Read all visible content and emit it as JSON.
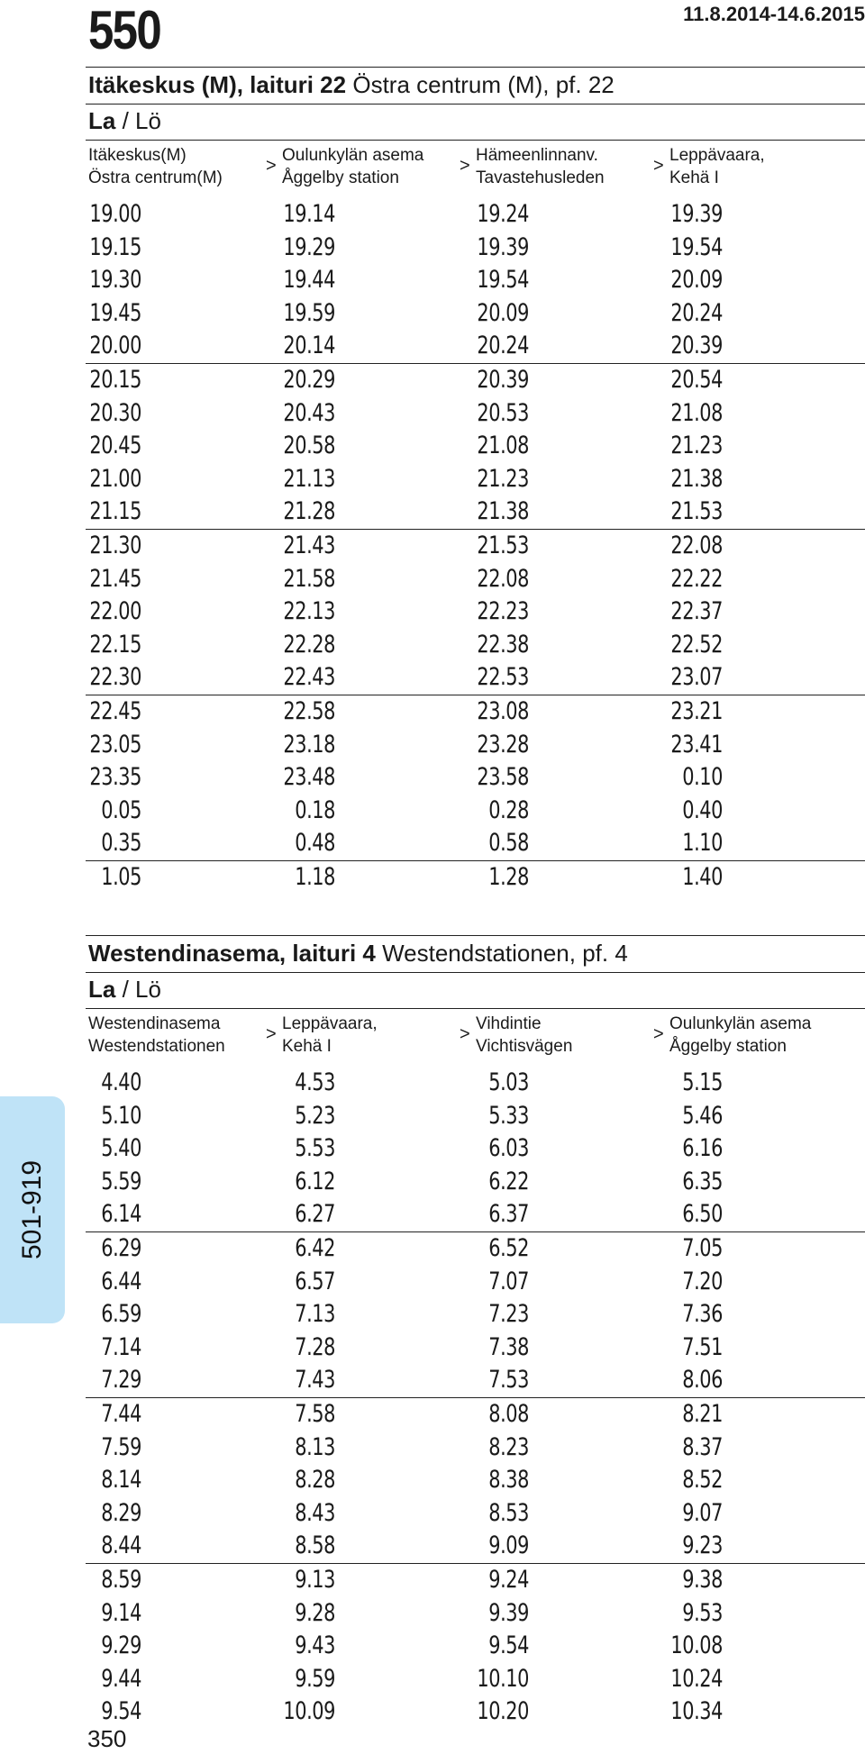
{
  "header": {
    "route": "550",
    "validity": "11.8.2014-14.6.2015"
  },
  "side_tab": {
    "label": "501-919"
  },
  "footer": {
    "page": "350"
  },
  "sections": [
    {
      "stop_fi": "Itäkeskus (M), laituri 22",
      "stop_sv": "Östra centrum (M), pf. 22",
      "day_fi": "La",
      "day_sv": "Lö",
      "columns": [
        {
          "fi": "Itäkeskus(M)",
          "sv": "Östra centrum(M)"
        },
        {
          "fi": "Oulunkylän asema",
          "sv": "Åggelby station"
        },
        {
          "fi": "Hämeenlinnanv.",
          "sv": "Tavastehusleden"
        },
        {
          "fi": "Leppävaara,",
          "sv": "Kehä I"
        }
      ],
      "arrow": ">",
      "rows": [
        [
          "19.00",
          "19.14",
          "19.24",
          "19.39"
        ],
        [
          "19.15",
          "19.29",
          "19.39",
          "19.54"
        ],
        [
          "19.30",
          "19.44",
          "19.54",
          "20.09"
        ],
        [
          "19.45",
          "19.59",
          "20.09",
          "20.24"
        ],
        [
          "20.00",
          "20.14",
          "20.24",
          "20.39"
        ],
        [
          "20.15",
          "20.29",
          "20.39",
          "20.54"
        ],
        [
          "20.30",
          "20.43",
          "20.53",
          "21.08"
        ],
        [
          "20.45",
          "20.58",
          "21.08",
          "21.23"
        ],
        [
          "21.00",
          "21.13",
          "21.23",
          "21.38"
        ],
        [
          "21.15",
          "21.28",
          "21.38",
          "21.53"
        ],
        [
          "21.30",
          "21.43",
          "21.53",
          "22.08"
        ],
        [
          "21.45",
          "21.58",
          "22.08",
          "22.22"
        ],
        [
          "22.00",
          "22.13",
          "22.23",
          "22.37"
        ],
        [
          "22.15",
          "22.28",
          "22.38",
          "22.52"
        ],
        [
          "22.30",
          "22.43",
          "22.53",
          "23.07"
        ],
        [
          "22.45",
          "22.58",
          "23.08",
          "23.21"
        ],
        [
          "23.05",
          "23.18",
          "23.28",
          "23.41"
        ],
        [
          "23.35",
          "23.48",
          "23.58",
          "0.10"
        ],
        [
          "0.05",
          "0.18",
          "0.28",
          "0.40"
        ],
        [
          "0.35",
          "0.48",
          "0.58",
          "1.10"
        ],
        [
          "1.05",
          "1.18",
          "1.28",
          "1.40"
        ]
      ]
    },
    {
      "stop_fi": "Westendinasema, laituri 4",
      "stop_sv": "Westendstationen, pf. 4",
      "day_fi": "La",
      "day_sv": "Lö",
      "columns": [
        {
          "fi": "Westendinasema",
          "sv": "Westendstationen"
        },
        {
          "fi": "Leppävaara,",
          "sv": "Kehä I"
        },
        {
          "fi": "Vihdintie",
          "sv": "Vichtisvägen"
        },
        {
          "fi": "Oulunkylän asema",
          "sv": "Åggelby station"
        }
      ],
      "arrow": ">",
      "rows": [
        [
          "4.40",
          "4.53",
          "5.03",
          "5.15"
        ],
        [
          "5.10",
          "5.23",
          "5.33",
          "5.46"
        ],
        [
          "5.40",
          "5.53",
          "6.03",
          "6.16"
        ],
        [
          "5.59",
          "6.12",
          "6.22",
          "6.35"
        ],
        [
          "6.14",
          "6.27",
          "6.37",
          "6.50"
        ],
        [
          "6.29",
          "6.42",
          "6.52",
          "7.05"
        ],
        [
          "6.44",
          "6.57",
          "7.07",
          "7.20"
        ],
        [
          "6.59",
          "7.13",
          "7.23",
          "7.36"
        ],
        [
          "7.14",
          "7.28",
          "7.38",
          "7.51"
        ],
        [
          "7.29",
          "7.43",
          "7.53",
          "8.06"
        ],
        [
          "7.44",
          "7.58",
          "8.08",
          "8.21"
        ],
        [
          "7.59",
          "8.13",
          "8.23",
          "8.37"
        ],
        [
          "8.14",
          "8.28",
          "8.38",
          "8.52"
        ],
        [
          "8.29",
          "8.43",
          "8.53",
          "9.07"
        ],
        [
          "8.44",
          "8.58",
          "9.09",
          "9.23"
        ],
        [
          "8.59",
          "9.13",
          "9.24",
          "9.38"
        ],
        [
          "9.14",
          "9.28",
          "9.39",
          "9.53"
        ],
        [
          "9.29",
          "9.43",
          "9.54",
          "10.08"
        ],
        [
          "9.44",
          "9.59",
          "10.10",
          "10.24"
        ],
        [
          "9.54",
          "10.09",
          "10.20",
          "10.34"
        ]
      ]
    }
  ]
}
